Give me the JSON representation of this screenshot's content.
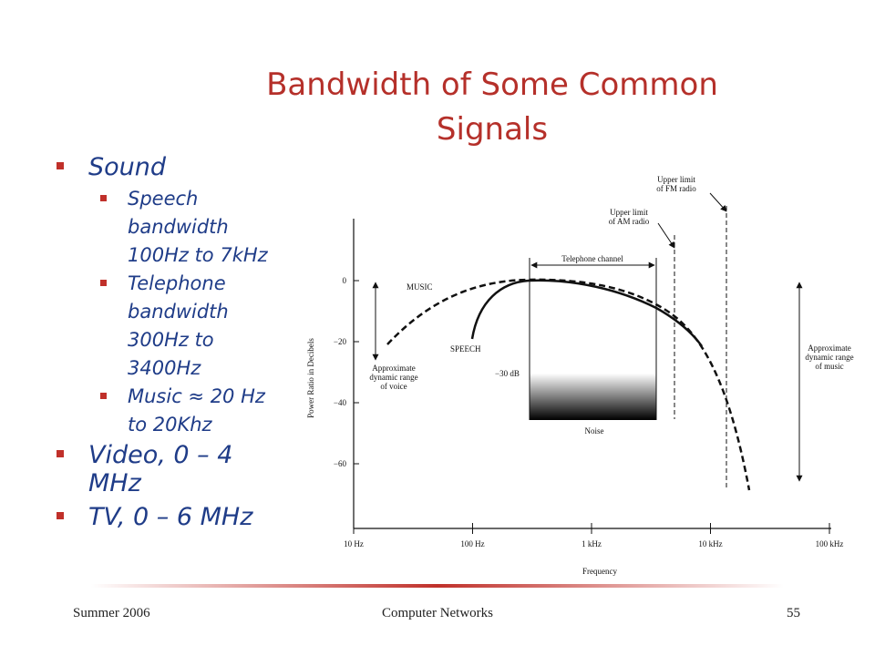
{
  "title": [
    "Bandwidth of Some Common",
    "Signals"
  ],
  "bullets": [
    {
      "lines": [
        "Sound"
      ],
      "sub": [
        {
          "lines": [
            "Speech",
            "bandwidth",
            "100Hz to 7kHz"
          ]
        },
        {
          "lines": [
            "Telephone",
            "bandwidth",
            "300Hz to",
            "3400Hz"
          ]
        },
        {
          "lines": [
            "Music ≈ 20 Hz",
            "to 20Khz"
          ]
        }
      ]
    },
    {
      "lines": [
        "Video, 0 – 4",
        "MHz"
      ]
    },
    {
      "lines": [
        "TV, 0 – 6 MHz"
      ]
    }
  ],
  "figure": {
    "y_axis_label": "Power Ratio in Decibels",
    "x_axis_label": "Frequency",
    "y_ticks": [
      "0",
      "−20",
      "−40",
      "−60"
    ],
    "x_ticks": [
      "10 Hz",
      "100 Hz",
      "1 kHz",
      "10 kHz",
      "100 kHz"
    ],
    "fm_limit": [
      "Upper limit",
      "of FM radio"
    ],
    "am_limit": [
      "Upper limit",
      "of AM radio"
    ],
    "telephone_channel": "Telephone channel",
    "music": "MUSIC",
    "speech": "SPEECH",
    "noise_level": "−30 dB",
    "noise": "Noise",
    "voice_range": [
      "Approximate",
      "dynamic range",
      "of voice"
    ],
    "music_range": [
      "Approximate",
      "dynamic range",
      "of music"
    ]
  },
  "footer": {
    "left": "Summer 2006",
    "center": "Computer Networks",
    "right": "55"
  }
}
